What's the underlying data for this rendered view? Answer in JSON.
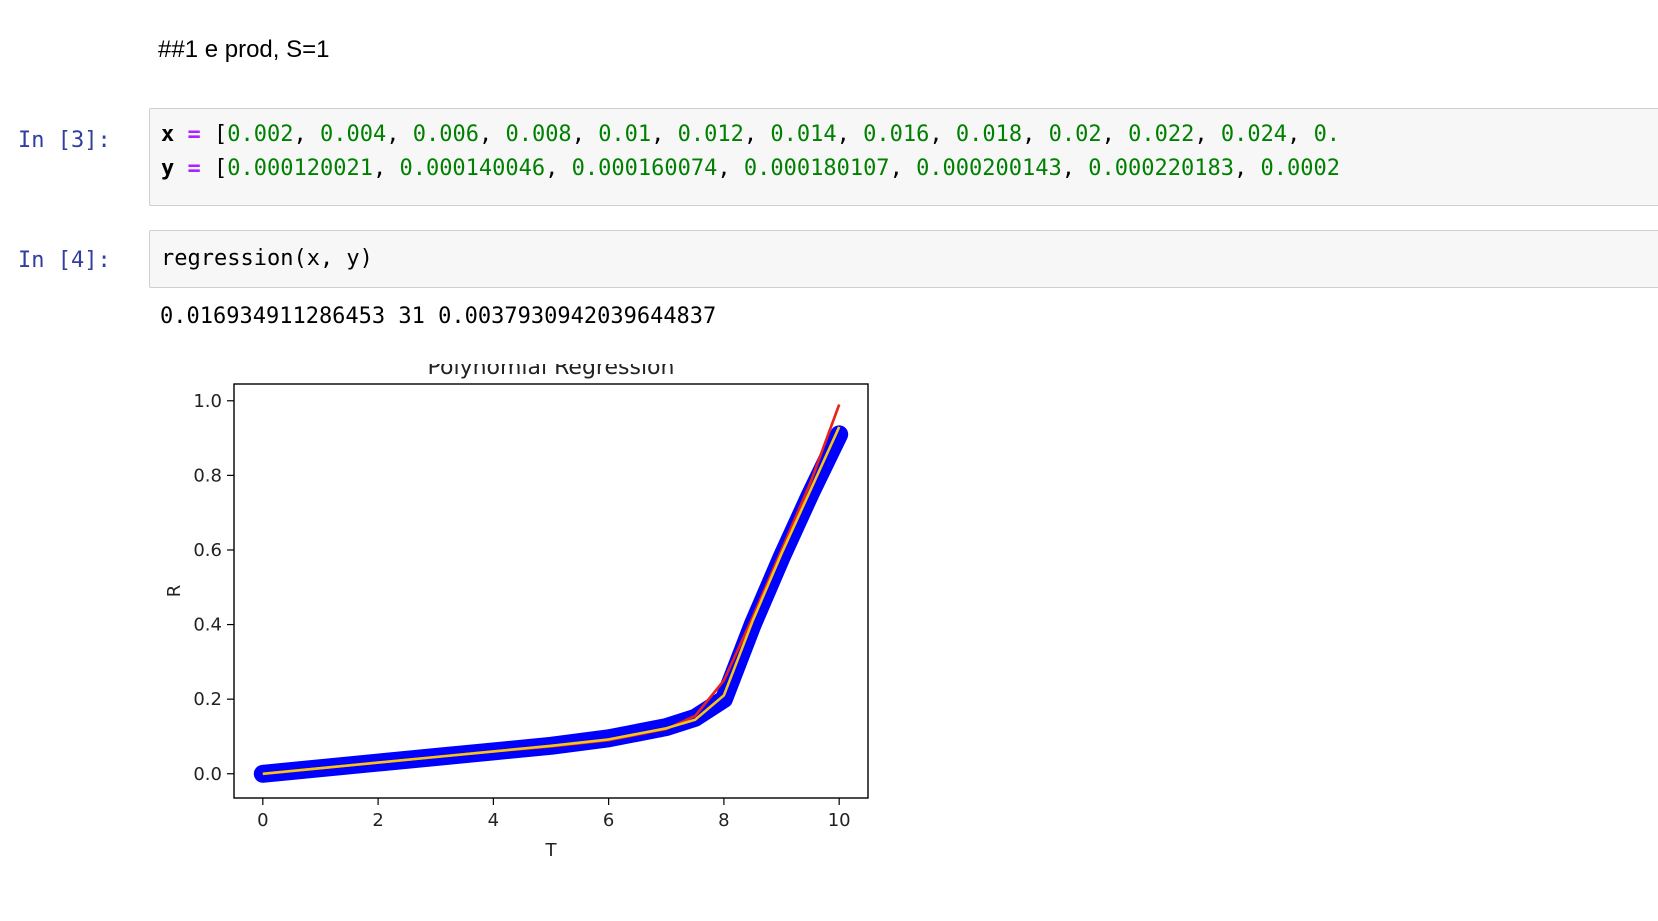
{
  "markdown": {
    "text": "##1 e prod, S=1"
  },
  "cells": [
    {
      "prompt": "In [3]:",
      "lines": [
        {
          "var": "x",
          "op": "=",
          "open": "[",
          "values": [
            "0.002",
            "0.004",
            "0.006",
            "0.008",
            "0.01",
            "0.012",
            "0.014",
            "0.016",
            "0.018",
            "0.02",
            "0.022",
            "0.024",
            "0."
          ]
        },
        {
          "var": "y",
          "op": "=",
          "open": "[",
          "values": [
            "0.000120021",
            "0.000140046",
            "0.000160074",
            "0.000180107",
            "0.000200143",
            "0.000220183",
            "0.0002"
          ]
        }
      ]
    },
    {
      "prompt": "In [4]:",
      "code": "regression(x, y)"
    }
  ],
  "output": {
    "text": "0.016934911286453 31 0.0037930942039644837"
  },
  "chart_data": {
    "type": "line",
    "title": "Polynomial Regression",
    "xlabel": "T",
    "ylabel": "R",
    "xlim": [
      -0.5,
      10.5
    ],
    "ylim": [
      -0.065,
      1.045
    ],
    "xticks": [
      "0",
      "2",
      "4",
      "6",
      "8",
      "10"
    ],
    "yticks": [
      "0.0",
      "0.2",
      "0.4",
      "0.6",
      "0.8",
      "1.0"
    ],
    "grid": false,
    "legend": "none",
    "series": [
      {
        "style": "scatter-band",
        "color": "#0000ff",
        "x": [
          0,
          1,
          2,
          3,
          4,
          5,
          6,
          7,
          7.5,
          8,
          8.5,
          9,
          9.5,
          10
        ],
        "y": [
          0.0,
          0.015,
          0.03,
          0.045,
          0.06,
          0.075,
          0.095,
          0.125,
          0.15,
          0.2,
          0.4,
          0.58,
          0.75,
          0.91
        ]
      },
      {
        "style": "line",
        "color": "#e8231a",
        "x": [
          0,
          1,
          2,
          3,
          4,
          5,
          6,
          7,
          7.5,
          8,
          8.5,
          9,
          9.5,
          10
        ],
        "y": [
          0.0,
          0.015,
          0.03,
          0.045,
          0.06,
          0.073,
          0.09,
          0.12,
          0.155,
          0.25,
          0.42,
          0.6,
          0.78,
          0.99
        ]
      },
      {
        "style": "line",
        "color": "#f5c518",
        "x": [
          0,
          1,
          2,
          3,
          4,
          5,
          6,
          7,
          7.5,
          8,
          8.5,
          9,
          9.5,
          10
        ],
        "y": [
          0.0,
          0.015,
          0.03,
          0.045,
          0.06,
          0.075,
          0.092,
          0.122,
          0.145,
          0.21,
          0.41,
          0.59,
          0.76,
          0.93
        ]
      }
    ]
  }
}
